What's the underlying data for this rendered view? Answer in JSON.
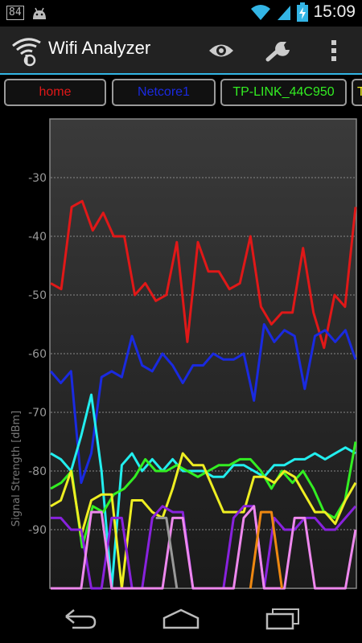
{
  "status_bar": {
    "notification_count": "84",
    "time": "15:09",
    "icons": [
      "notification-badge-icon",
      "android-icon",
      "wifi-signal-icon",
      "cell-signal-icon",
      "battery-charging-icon"
    ]
  },
  "action_bar": {
    "title": "Wifi Analyzer",
    "icons": [
      "wifi-analyzer-app-icon",
      "eye-icon",
      "wrench-icon",
      "overflow-menu-icon"
    ]
  },
  "tabs": [
    {
      "label": "home",
      "color": "#e01818"
    },
    {
      "label": "Netcore1",
      "color": "#1a2ae0"
    },
    {
      "label": "TP-LINK_44C950",
      "color": "#33ee22"
    },
    {
      "label": "T",
      "color": "#eeee22"
    }
  ],
  "chart_data": {
    "type": "line",
    "ylabel": "Signal Strength [dBm]",
    "ylim": [
      -100,
      -20
    ],
    "yticks": [
      -30,
      -40,
      -50,
      -60,
      -70,
      -80,
      -90
    ],
    "ytick_labels": [
      "-30",
      "-40",
      "-50",
      "-60",
      "-70",
      "-80",
      "-90"
    ],
    "grid": true,
    "series": [
      {
        "color": "#e01818",
        "values": [
          -48,
          -49,
          -35,
          -34,
          -39,
          -36,
          -40,
          -40,
          -50,
          -48,
          -51,
          -50,
          -41,
          -58,
          -41,
          -46,
          -46,
          -49,
          -48,
          -40,
          -52,
          -55,
          -53,
          -53,
          -42,
          -53,
          -59,
          -50,
          -52,
          -35
        ]
      },
      {
        "color": "#1a2ae0",
        "values": [
          -63,
          -65,
          -63,
          -82,
          -77,
          -64,
          -63,
          -64,
          -57,
          -62,
          -63,
          -60,
          -62,
          -65,
          -62,
          -62,
          -60,
          -61,
          -61,
          -60,
          -68,
          -55,
          -58,
          -56,
          -57,
          -66,
          -57,
          -56,
          -58,
          -56,
          -61
        ]
      },
      {
        "color": "#22eeee",
        "values": [
          -77,
          -78,
          -80,
          -74,
          -67,
          -80,
          -100,
          -79,
          -77,
          -80,
          -78,
          -80,
          -78,
          -80,
          -80,
          -80,
          -81,
          -81,
          -79,
          -79,
          -80,
          -81,
          -79,
          -79,
          -78,
          -78,
          -77,
          -78,
          -77,
          -76,
          -77
        ]
      },
      {
        "color": "#33ee22",
        "values": [
          -83,
          -82,
          -80,
          -93,
          -86,
          -87,
          -84,
          -83,
          -81,
          -78,
          -80,
          -80,
          -79,
          -80,
          -81,
          -80,
          -79,
          -79,
          -78,
          -78,
          -80,
          -83,
          -80,
          -82,
          -80,
          -83,
          -87,
          -88,
          -85,
          -75
        ]
      },
      {
        "color": "#eeee22",
        "values": [
          -86,
          -85,
          -80,
          -91,
          -85,
          -84,
          -84,
          -100,
          -85,
          -85,
          -87,
          -88,
          -83,
          -77,
          -79,
          -79,
          -83,
          -87,
          -87,
          -87,
          -81,
          -81,
          -82,
          -80,
          -81,
          -84,
          -87,
          -87,
          -89,
          -85,
          -82
        ]
      },
      {
        "color": "#8822dd",
        "values": [
          -88,
          -88,
          -90,
          -90,
          -100,
          -100,
          -88,
          -88,
          -100,
          -100,
          -88,
          -86,
          -87,
          -87,
          -100,
          -100,
          -100,
          -100,
          -88,
          -86,
          -86,
          -100,
          -88,
          -90,
          -90,
          -88,
          -88,
          -90,
          -90,
          -88,
          -86
        ]
      },
      {
        "color": "#ee88ee",
        "values": [
          -100,
          -100,
          -100,
          -100,
          -87,
          -87,
          -100,
          -100,
          -100,
          -100,
          -100,
          -100,
          -88,
          -88,
          -100,
          -100,
          -100,
          -100,
          -100,
          -88,
          -86,
          -100,
          -100,
          -100,
          -88,
          -88,
          -100,
          -100,
          -100,
          -100,
          -90
        ]
      },
      {
        "color": "#999999",
        "values": [
          null,
          null,
          null,
          null,
          null,
          null,
          null,
          null,
          null,
          null,
          -88,
          -88,
          -100,
          null,
          null,
          null,
          null,
          null,
          null,
          null,
          null,
          null,
          null,
          null,
          null,
          null,
          null,
          null,
          null,
          null
        ]
      },
      {
        "color": "#ee8811",
        "values": [
          null,
          null,
          null,
          null,
          null,
          null,
          null,
          null,
          null,
          null,
          null,
          null,
          null,
          null,
          null,
          null,
          null,
          null,
          null,
          -100,
          -87,
          -87,
          -100,
          null,
          null,
          null,
          null,
          null,
          null,
          null
        ]
      }
    ]
  }
}
